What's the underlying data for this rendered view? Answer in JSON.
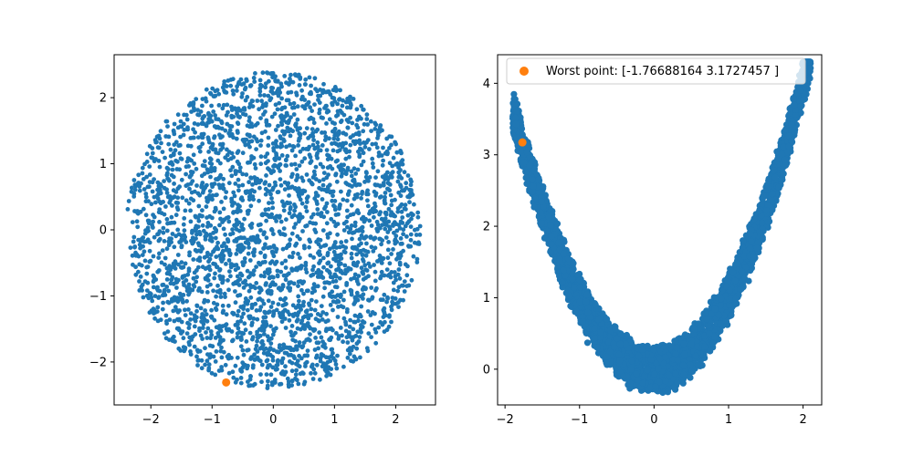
{
  "colors": {
    "series_blue": "#1f77b4",
    "highlight_orange": "#ff7f0e",
    "axis": "#000000",
    "legend_border": "#cccccc"
  },
  "chart_data": [
    {
      "type": "scatter",
      "xlim": [
        -2.6,
        2.65
      ],
      "ylim": [
        -2.65,
        2.65
      ],
      "xticks": [
        -2,
        -1,
        0,
        1,
        2
      ],
      "yticks": [
        -2,
        -1,
        0,
        1,
        2
      ],
      "grid": false,
      "series": [
        {
          "shape": "disk",
          "radius": 2.4,
          "count": 3000,
          "color": "#1f77b4"
        },
        {
          "points": [
            [
              -0.77,
              -2.31
            ]
          ],
          "color": "#ff7f0e"
        }
      ]
    },
    {
      "type": "scatter",
      "xlim": [
        -2.1,
        2.25
      ],
      "ylim": [
        -0.5,
        4.4
      ],
      "xticks": [
        -2,
        -1,
        0,
        1,
        2
      ],
      "yticks": [
        0,
        1,
        2,
        3,
        4
      ],
      "grid": false,
      "legend_position": "top-left",
      "series": [
        {
          "shape": "parabolic band",
          "relation": "y ≈ x² ± 0.3",
          "x_range": [
            -1.9,
            2.1
          ],
          "count": 3000,
          "color": "#1f77b4"
        },
        {
          "name": "Worst point: [-1.76688164  3.1727457 ]",
          "points": [
            [
              -1.76688164,
              3.1727457
            ]
          ],
          "color": "#ff7f0e"
        }
      ]
    }
  ]
}
